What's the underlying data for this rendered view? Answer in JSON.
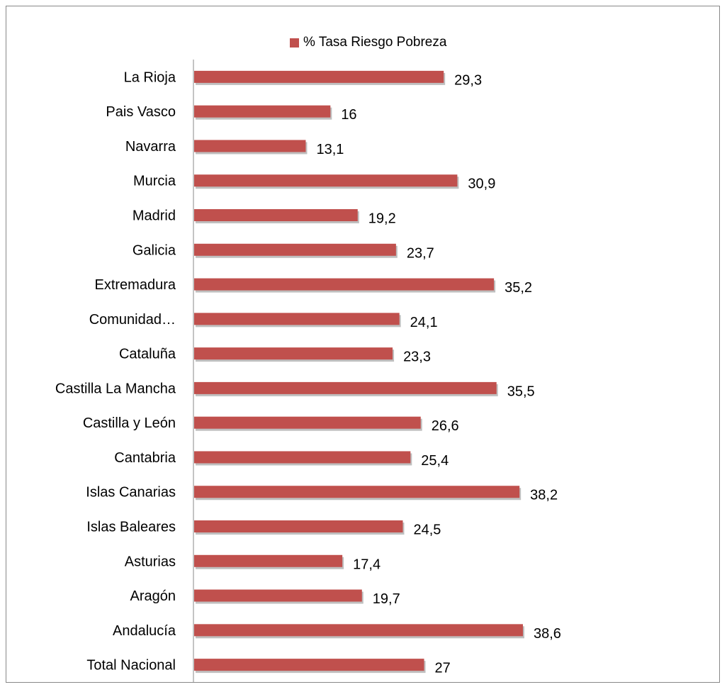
{
  "chart_data": {
    "type": "bar",
    "orientation": "horizontal",
    "categories": [
      "La Rioja",
      "Pais Vasco",
      "Navarra",
      "Murcia",
      "Madrid",
      "Galicia",
      "Extremadura",
      "Comunidad…",
      "Cataluña",
      "Castilla La Mancha",
      "Castilla y León",
      "Cantabria",
      "Islas Canarias",
      "Islas Baleares",
      "Asturias",
      "Aragón",
      "Andalucía",
      "Total Nacional"
    ],
    "series": [
      {
        "name": "% Tasa Riesgo Pobreza",
        "values": [
          29.3,
          16,
          13.1,
          30.9,
          19.2,
          23.7,
          35.2,
          24.1,
          23.3,
          35.5,
          26.6,
          25.4,
          38.2,
          24.5,
          17.4,
          19.7,
          38.6,
          27
        ],
        "value_labels": [
          "29,3",
          "16",
          "13,1",
          "30,9",
          "19,2",
          "23,7",
          "35,2",
          "24,1",
          "23,3",
          "35,5",
          "26,6",
          "25,4",
          "38,2",
          "24,5",
          "17,4",
          "19,7",
          "38,6",
          "27"
        ]
      }
    ],
    "xlim": [
      0,
      40
    ],
    "legend_position": "top",
    "grid": false,
    "bar_color": "#c0504d"
  }
}
